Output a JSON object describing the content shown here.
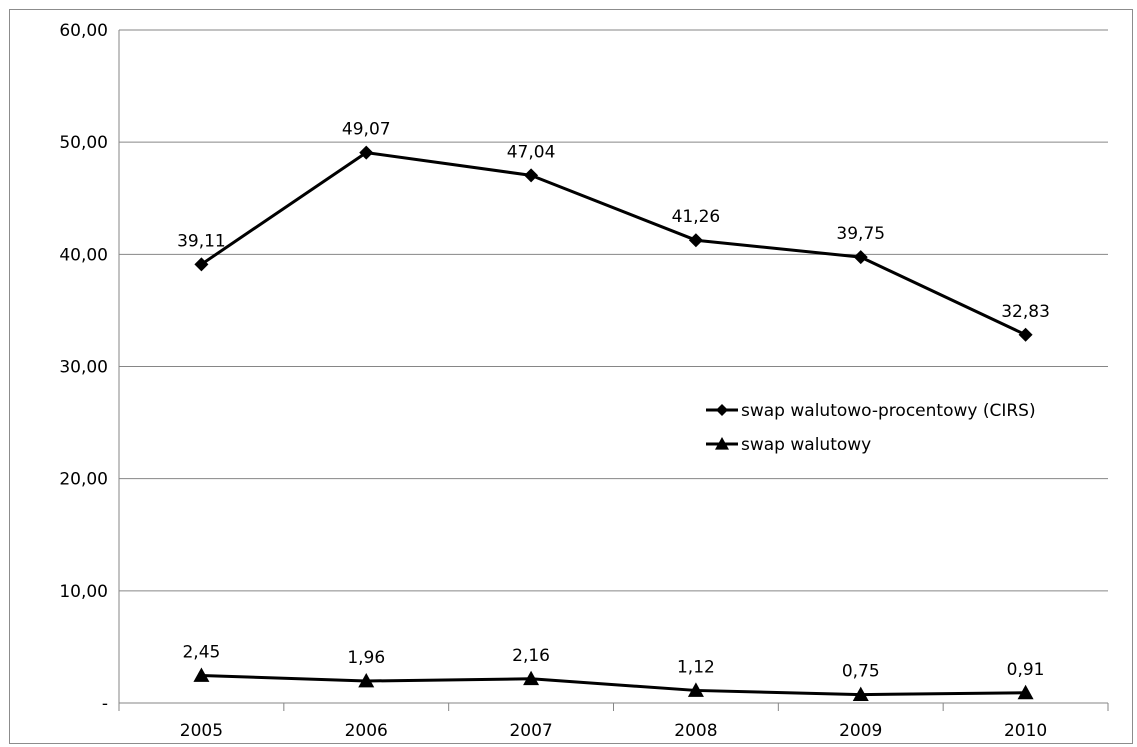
{
  "chart_data": {
    "type": "line",
    "categories": [
      "2005",
      "2006",
      "2007",
      "2008",
      "2009",
      "2010"
    ],
    "series": [
      {
        "name": "swap walutowo-procentowy (CIRS)",
        "marker": "diamond",
        "values": [
          39.11,
          49.07,
          47.04,
          41.26,
          39.75,
          32.83
        ],
        "labels": [
          "39,11",
          "49,07",
          "47,04",
          "41,26",
          "39,75",
          "32,83"
        ]
      },
      {
        "name": "swap walutowy",
        "marker": "triangle",
        "values": [
          2.45,
          1.96,
          2.16,
          1.12,
          0.75,
          0.91
        ],
        "labels": [
          "2,45",
          "1,96",
          "2,16",
          "1,12",
          "0,75",
          "0,91"
        ]
      }
    ],
    "ylim": [
      0,
      60
    ],
    "yticks": [
      0,
      10,
      20,
      30,
      40,
      50,
      60
    ],
    "ytick_labels": [
      "-",
      "10,00",
      "20,00",
      "30,00",
      "40,00",
      "50,00",
      "60,00"
    ],
    "xlabel": "",
    "ylabel": "",
    "title": "",
    "grid": true,
    "legend_position": "right-middle",
    "colors": {
      "line": "#000000",
      "grid": "#868686",
      "axis": "#868686",
      "frame": "#8c8c8c"
    }
  }
}
